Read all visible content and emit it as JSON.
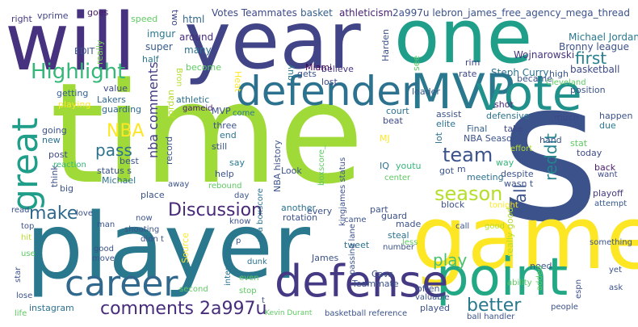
{
  "words": [
    {
      "text": "time",
      "color": "#a0da39"
    },
    {
      "text": "s",
      "color": "#3b528b"
    },
    {
      "text": "player",
      "color": "#2a788e"
    },
    {
      "text": "game",
      "color": "#fde725"
    },
    {
      "text": "will",
      "color": "#46327e"
    },
    {
      "text": "year",
      "color": "#414487"
    },
    {
      "text": "one",
      "color": "#1f9e89"
    },
    {
      "text": "point",
      "color": "#22a884"
    },
    {
      "text": "MVP",
      "color": "#2a788e"
    },
    {
      "text": "vote",
      "color": "#21918c"
    },
    {
      "text": "defender",
      "color": "#2c728e"
    },
    {
      "text": "defense",
      "color": "#443983"
    },
    {
      "text": "career",
      "color": "#31688e"
    },
    {
      "text": "great",
      "color": "#1f9e89"
    },
    {
      "text": "Highlight",
      "color": "#35b779"
    },
    {
      "text": "comments 2a997u",
      "color": "#472d7b"
    },
    {
      "text": "Discussion",
      "color": "#482878"
    },
    {
      "text": "season",
      "color": "#b5de2b"
    },
    {
      "text": "team",
      "color": "#3b528b"
    },
    {
      "text": "make",
      "color": "#31688e"
    },
    {
      "text": "play",
      "color": "#4ac16d"
    },
    {
      "text": "pass",
      "color": "#2c728e"
    },
    {
      "text": "first",
      "color": "#277f8e"
    },
    {
      "text": "better",
      "color": "#2a788e"
    },
    {
      "text": "ball",
      "color": "#3b528b"
    },
    {
      "text": "reddit",
      "color": "#25848e"
    },
    {
      "text": "NBA",
      "color": "#fde725"
    },
    {
      "text": "nba comments",
      "color": "#433e85"
    },
    {
      "text": "2a997u lebron_james_free_agency_mega_thread",
      "color": "#3b528b"
    },
    {
      "text": "Votes Teammates",
      "color": "#3e4a89"
    },
    {
      "text": "basket",
      "color": "#355f8d"
    },
    {
      "text": "athleticism",
      "color": "#482173"
    },
    {
      "text": "Michael Jordan",
      "color": "#2a788e"
    },
    {
      "text": "Bronny league",
      "color": "#3b528b"
    },
    {
      "text": "Wojnarowski",
      "color": "#46337e"
    },
    {
      "text": "basketball",
      "color": "#3e4989"
    },
    {
      "text": "Steph Curry",
      "color": "#2d708e"
    },
    {
      "text": "Miami",
      "color": "#440154"
    },
    {
      "text": "html",
      "color": "#31688e"
    },
    {
      "text": "imgur",
      "color": "#2a788e"
    },
    {
      "text": "super",
      "color": "#365c8d"
    },
    {
      "text": "around",
      "color": "#472c7a"
    },
    {
      "text": "many",
      "color": "#2c728e"
    },
    {
      "text": "two",
      "color": "#3f4889"
    },
    {
      "text": "speed",
      "color": "#5ec962"
    },
    {
      "text": "goes",
      "color": "#481769"
    },
    {
      "text": "vprime",
      "color": "#414487"
    },
    {
      "text": "right",
      "color": "#443983"
    },
    {
      "text": "EDIT",
      "color": "#3b528b"
    },
    {
      "text": "really",
      "color": "#7ad151"
    },
    {
      "text": "half",
      "color": "#2a788e"
    },
    {
      "text": "Harden",
      "color": "#3b528b"
    },
    {
      "text": "see",
      "color": "#5ec962"
    },
    {
      "text": "rate",
      "color": "#3e4989"
    },
    {
      "text": "rim",
      "color": "#414487"
    },
    {
      "text": "leader",
      "color": "#38588c"
    },
    {
      "text": "believe",
      "color": "#46337e"
    },
    {
      "text": "lost",
      "color": "#3e4989"
    },
    {
      "text": "gets",
      "color": "#3b528b"
    },
    {
      "text": "guy",
      "color": "#2a788e"
    },
    {
      "text": "Heat",
      "color": "#fde725"
    },
    {
      "text": "become",
      "color": "#5ec962"
    },
    {
      "text": "Bron",
      "color": "#b5de2b"
    },
    {
      "text": "became",
      "color": "#3b528b"
    },
    {
      "text": "high",
      "color": "#38588c"
    },
    {
      "text": "value",
      "color": "#3e4989"
    },
    {
      "text": "getting",
      "color": "#34618d"
    },
    {
      "text": "playing",
      "color": "#fde725"
    },
    {
      "text": "Lakers",
      "color": "#31688e"
    },
    {
      "text": "guarding",
      "color": "#31688e"
    },
    {
      "text": "Jordan",
      "color": "#b5de2b"
    },
    {
      "text": "athletic",
      "color": "#2c728e"
    },
    {
      "text": "gameid",
      "color": "#481a6c"
    },
    {
      "text": "MVP",
      "color": "#3b528b"
    },
    {
      "text": "come",
      "color": "#2a788e"
    },
    {
      "text": "assist",
      "color": "#3b528b"
    },
    {
      "text": "elite",
      "color": "#2c728e"
    },
    {
      "text": "beat",
      "color": "#3e4989"
    },
    {
      "text": "court",
      "color": "#2c728e"
    },
    {
      "text": "shot",
      "color": "#472a7a"
    },
    {
      "text": "defensive",
      "color": "#2c728e"
    },
    {
      "text": "much",
      "color": "#3e4989"
    },
    {
      "text": "happen",
      "color": "#3b528b"
    },
    {
      "text": "due",
      "color": "#2a788e"
    },
    {
      "text": "Final",
      "color": "#34618d"
    },
    {
      "text": "take",
      "color": "#3e4989"
    },
    {
      "text": "hand",
      "color": "#3b528b"
    },
    {
      "text": "today",
      "color": "#3e4a89"
    },
    {
      "text": "stat",
      "color": "#5ec962"
    },
    {
      "text": "back",
      "color": "#481b6d"
    },
    {
      "text": "want",
      "color": "#3e4989"
    },
    {
      "text": "playoff",
      "color": "#443983"
    },
    {
      "text": "attempt",
      "color": "#38588c"
    },
    {
      "text": "despite",
      "color": "#3b528b"
    },
    {
      "text": "way",
      "color": "#35b779"
    },
    {
      "text": "effort",
      "color": "#b5de2b"
    },
    {
      "text": "Cleveland",
      "color": "#5ec962"
    },
    {
      "text": "position",
      "color": "#3b528b"
    },
    {
      "text": "going",
      "color": "#3b528b"
    },
    {
      "text": "new",
      "color": "#2c728e"
    },
    {
      "text": "post",
      "color": "#3e4989"
    },
    {
      "text": "reaction",
      "color": "#35b779"
    },
    {
      "text": "think",
      "color": "#3b528b"
    },
    {
      "text": "big",
      "color": "#3b528b"
    },
    {
      "text": "best",
      "color": "#3b528b"
    },
    {
      "text": "status s",
      "color": "#3b528b"
    },
    {
      "text": "Michael",
      "color": "#2c728e"
    },
    {
      "text": "record",
      "color": "#3b528b"
    },
    {
      "text": "three",
      "color": "#3b528b"
    },
    {
      "text": "end",
      "color": "#2c728e"
    },
    {
      "text": "still",
      "color": "#3b528b"
    },
    {
      "text": "say",
      "color": "#2a788e"
    },
    {
      "text": "help",
      "color": "#3b528b"
    },
    {
      "text": "away",
      "color": "#3b528b"
    },
    {
      "text": "place",
      "color": "#3b528b"
    },
    {
      "text": "rebound",
      "color": "#5ec962"
    },
    {
      "text": "day",
      "color": "#3b528b"
    },
    {
      "text": "MJ",
      "color": "#fde725"
    },
    {
      "text": "NBA history",
      "color": "#3b528b"
    },
    {
      "text": "boxscore_",
      "color": "#5ec962"
    },
    {
      "text": "Look",
      "color": "#3b528b"
    },
    {
      "text": "IQ",
      "color": "#2c728e"
    },
    {
      "text": "youtu",
      "color": "#35b779"
    },
    {
      "text": "NBA Season",
      "color": "#3b528b"
    },
    {
      "text": "got",
      "color": "#3b528b"
    },
    {
      "text": "m",
      "color": "#3b528b"
    },
    {
      "text": "meeting",
      "color": "#2c728e"
    },
    {
      "text": "wasn t",
      "color": "#3b528b"
    },
    {
      "text": "lot",
      "color": "#2c728e"
    },
    {
      "text": "center",
      "color": "#5ec962"
    },
    {
      "text": "kingjames status",
      "color": "#3b528b"
    },
    {
      "text": "nba boxscore",
      "color": "#2c728e"
    },
    {
      "text": "every",
      "color": "#3b528b"
    },
    {
      "text": "rotation",
      "color": "#3b528b"
    },
    {
      "text": "another",
      "color": "#2c728e"
    },
    {
      "text": "block",
      "color": "#3b528b"
    },
    {
      "text": "tonight",
      "color": "#fde725"
    },
    {
      "text": "really good",
      "color": "#b5de2b"
    },
    {
      "text": "part",
      "color": "#3b528b"
    },
    {
      "text": "came",
      "color": "#3b528b"
    },
    {
      "text": "guard",
      "color": "#3b528b"
    },
    {
      "text": "made",
      "color": "#3b528b"
    },
    {
      "text": "steal",
      "color": "#2c728e"
    },
    {
      "text": "tweet",
      "color": "#2c728e"
    },
    {
      "text": "less",
      "color": "#5ec962"
    },
    {
      "text": "number",
      "color": "#3b528b"
    },
    {
      "text": "call",
      "color": "#3b528b"
    },
    {
      "text": "good",
      "color": "#b5de2b"
    },
    {
      "text": "need",
      "color": "#3b528b"
    },
    {
      "text": "something",
      "color": "#3b528b"
    },
    {
      "text": "read",
      "color": "#3b528b"
    },
    {
      "text": "love",
      "color": "#3b528b"
    },
    {
      "text": "man",
      "color": "#3b528b"
    },
    {
      "text": "now",
      "color": "#3b528b"
    },
    {
      "text": "know",
      "color": "#3b528b"
    },
    {
      "text": "top",
      "color": "#3b528b"
    },
    {
      "text": "hit",
      "color": "#b5de2b"
    },
    {
      "text": "use",
      "color": "#5ec962"
    },
    {
      "text": "shooting",
      "color": "#3b528b"
    },
    {
      "text": "didn t",
      "color": "#3b528b"
    },
    {
      "text": "Source",
      "color": "#fde725"
    },
    {
      "text": "p",
      "color": "#3b528b"
    },
    {
      "text": "good",
      "color": "#3b528b"
    },
    {
      "text": "move",
      "color": "#3b528b"
    },
    {
      "text": "interesting",
      "color": "#2c728e"
    },
    {
      "text": "passing lane",
      "color": "#3b528b"
    },
    {
      "text": "James",
      "color": "#3b528b"
    },
    {
      "text": "dunk",
      "color": "#2c728e"
    },
    {
      "text": "Cavs",
      "color": "#3b528b"
    },
    {
      "text": "Teammate",
      "color": "#3b528b"
    },
    {
      "text": "often",
      "color": "#3b528b"
    },
    {
      "text": "played",
      "color": "#3b528b"
    },
    {
      "text": "valuable",
      "color": "#3b528b"
    },
    {
      "text": "ability",
      "color": "#5ec962"
    },
    {
      "text": "added",
      "color": "#5ec962"
    },
    {
      "text": "yet",
      "color": "#3b528b"
    },
    {
      "text": "ask",
      "color": "#3b528b"
    },
    {
      "text": "espn",
      "color": "#3b528b"
    },
    {
      "text": "people",
      "color": "#3b528b"
    },
    {
      "text": "ball handler",
      "color": "#3b528b"
    },
    {
      "text": "basketball reference",
      "color": "#3b528b"
    },
    {
      "text": "Kevin Durant",
      "color": "#5ec962"
    },
    {
      "text": "t",
      "color": "#3b528b"
    },
    {
      "text": "stop",
      "color": "#5ec962"
    },
    {
      "text": "even",
      "color": "#5ec962"
    },
    {
      "text": "second",
      "color": "#5ec962"
    },
    {
      "text": "instagram",
      "color": "#2c728e"
    },
    {
      "text": "star",
      "color": "#3b528b"
    },
    {
      "text": "lose",
      "color": "#3b528b"
    },
    {
      "text": "life",
      "color": "#5ec962"
    }
  ]
}
